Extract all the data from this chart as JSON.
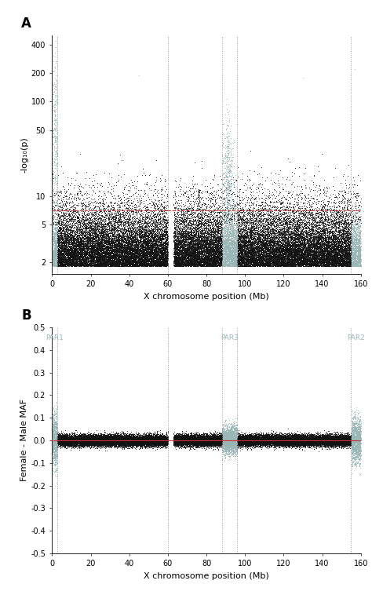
{
  "title_A": "A",
  "title_B": "B",
  "xlabel": "X chromosome position (Mb)",
  "ylabel_A": "-log₁₀(p)",
  "ylabel_B": "Female - Male MAF",
  "xlim": [
    0,
    160
  ],
  "xticks": [
    0,
    20,
    40,
    60,
    80,
    100,
    120,
    140,
    160
  ],
  "ylim_A_bottom": 1.5,
  "ylim_A_top": 500,
  "yticks_A": [
    2,
    5,
    10,
    50,
    100,
    200,
    400
  ],
  "ylim_B": [
    -0.5,
    0.5
  ],
  "yticks_B": [
    -0.5,
    -0.4,
    -0.3,
    -0.2,
    -0.1,
    0.0,
    0.1,
    0.2,
    0.3,
    0.4,
    0.5
  ],
  "significance_line_A": 7,
  "significance_color": "#cc3333",
  "dot_color_main": "#111111",
  "dot_color_par": "#9ab5b5",
  "dot_size_A": 0.4,
  "dot_size_B": 0.4,
  "par1_end": 2.7,
  "centromere_start": 60,
  "centromere_end": 63,
  "par3_start": 88,
  "par3_end": 96,
  "par2_start": 155,
  "par2_end": 160,
  "par_label_color": "#9ab5b5",
  "n_points": 50000,
  "seed": 42,
  "background_color": "#ffffff",
  "vline_color": "#999999",
  "gap_start": 60,
  "gap_end": 63
}
